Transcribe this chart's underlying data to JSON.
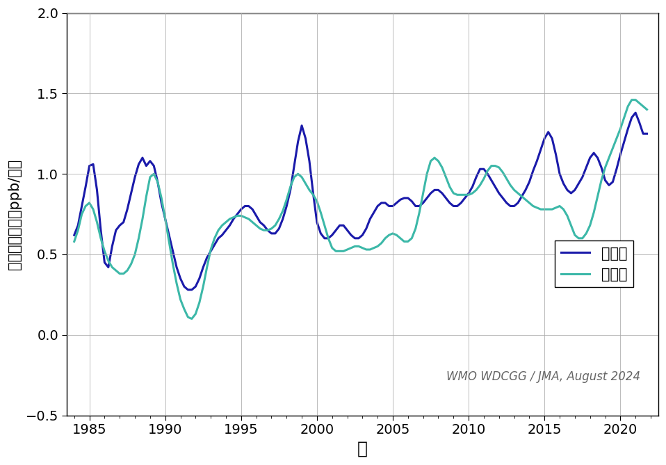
{
  "xlabel": "年",
  "ylabel": "濃度年増加量（ppb/年）",
  "annotation": "WMO WDCGG / JMA, August 2024",
  "legend_north": "北半球",
  "legend_south": "南半球",
  "color_north": "#1a1aaa",
  "color_south": "#3cb8a8",
  "xlim": [
    1983.5,
    2022.5
  ],
  "ylim": [
    -0.5,
    2.0
  ],
  "yticks": [
    -0.5,
    0.0,
    0.5,
    1.0,
    1.5,
    2.0
  ],
  "xticks": [
    1985,
    1990,
    1995,
    2000,
    2005,
    2010,
    2015,
    2020
  ],
  "north_x": [
    1984.0,
    1984.25,
    1984.5,
    1984.75,
    1985.0,
    1985.25,
    1985.5,
    1985.75,
    1986.0,
    1986.25,
    1986.5,
    1986.75,
    1987.0,
    1987.25,
    1987.5,
    1987.75,
    1988.0,
    1988.25,
    1988.5,
    1988.75,
    1989.0,
    1989.25,
    1989.5,
    1989.75,
    1990.0,
    1990.25,
    1990.5,
    1990.75,
    1991.0,
    1991.25,
    1991.5,
    1991.75,
    1992.0,
    1992.25,
    1992.5,
    1992.75,
    1993.0,
    1993.25,
    1993.5,
    1993.75,
    1994.0,
    1994.25,
    1994.5,
    1994.75,
    1995.0,
    1995.25,
    1995.5,
    1995.75,
    1996.0,
    1996.25,
    1996.5,
    1996.75,
    1997.0,
    1997.25,
    1997.5,
    1997.75,
    1998.0,
    1998.25,
    1998.5,
    1998.75,
    1999.0,
    1999.25,
    1999.5,
    1999.75,
    2000.0,
    2000.25,
    2000.5,
    2000.75,
    2001.0,
    2001.25,
    2001.5,
    2001.75,
    2002.0,
    2002.25,
    2002.5,
    2002.75,
    2003.0,
    2003.25,
    2003.5,
    2003.75,
    2004.0,
    2004.25,
    2004.5,
    2004.75,
    2005.0,
    2005.25,
    2005.5,
    2005.75,
    2006.0,
    2006.25,
    2006.5,
    2006.75,
    2007.0,
    2007.25,
    2007.5,
    2007.75,
    2008.0,
    2008.25,
    2008.5,
    2008.75,
    2009.0,
    2009.25,
    2009.5,
    2009.75,
    2010.0,
    2010.25,
    2010.5,
    2010.75,
    2011.0,
    2011.25,
    2011.5,
    2011.75,
    2012.0,
    2012.25,
    2012.5,
    2012.75,
    2013.0,
    2013.25,
    2013.5,
    2013.75,
    2014.0,
    2014.25,
    2014.5,
    2014.75,
    2015.0,
    2015.25,
    2015.5,
    2015.75,
    2016.0,
    2016.25,
    2016.5,
    2016.75,
    2017.0,
    2017.25,
    2017.5,
    2017.75,
    2018.0,
    2018.25,
    2018.5,
    2018.75,
    2019.0,
    2019.25,
    2019.5,
    2019.75,
    2020.0,
    2020.25,
    2020.5,
    2020.75,
    2021.0,
    2021.25,
    2021.5,
    2021.75
  ],
  "north_y": [
    0.62,
    0.68,
    0.8,
    0.92,
    1.05,
    1.06,
    0.9,
    0.65,
    0.45,
    0.42,
    0.55,
    0.65,
    0.68,
    0.7,
    0.78,
    0.88,
    0.98,
    1.06,
    1.1,
    1.05,
    1.08,
    1.05,
    0.95,
    0.82,
    0.72,
    0.62,
    0.52,
    0.42,
    0.35,
    0.3,
    0.28,
    0.28,
    0.3,
    0.35,
    0.42,
    0.48,
    0.52,
    0.56,
    0.6,
    0.62,
    0.65,
    0.68,
    0.72,
    0.75,
    0.78,
    0.8,
    0.8,
    0.78,
    0.74,
    0.7,
    0.68,
    0.65,
    0.63,
    0.63,
    0.66,
    0.72,
    0.8,
    0.9,
    1.05,
    1.2,
    1.3,
    1.22,
    1.08,
    0.88,
    0.7,
    0.63,
    0.6,
    0.6,
    0.62,
    0.65,
    0.68,
    0.68,
    0.65,
    0.62,
    0.6,
    0.6,
    0.62,
    0.66,
    0.72,
    0.76,
    0.8,
    0.82,
    0.82,
    0.8,
    0.8,
    0.82,
    0.84,
    0.85,
    0.85,
    0.83,
    0.8,
    0.8,
    0.82,
    0.85,
    0.88,
    0.9,
    0.9,
    0.88,
    0.85,
    0.82,
    0.8,
    0.8,
    0.82,
    0.85,
    0.88,
    0.92,
    0.98,
    1.03,
    1.03,
    1.0,
    0.96,
    0.92,
    0.88,
    0.85,
    0.82,
    0.8,
    0.8,
    0.82,
    0.86,
    0.9,
    0.95,
    1.02,
    1.08,
    1.15,
    1.22,
    1.26,
    1.22,
    1.12,
    1.0,
    0.94,
    0.9,
    0.88,
    0.9,
    0.94,
    0.98,
    1.04,
    1.1,
    1.13,
    1.1,
    1.04,
    0.96,
    0.93,
    0.95,
    1.03,
    1.12,
    1.2,
    1.28,
    1.35,
    1.38,
    1.32,
    1.25,
    1.25
  ],
  "south_x": [
    1984.0,
    1984.25,
    1984.5,
    1984.75,
    1985.0,
    1985.25,
    1985.5,
    1985.75,
    1986.0,
    1986.25,
    1986.5,
    1986.75,
    1987.0,
    1987.25,
    1987.5,
    1987.75,
    1988.0,
    1988.25,
    1988.5,
    1988.75,
    1989.0,
    1989.25,
    1989.5,
    1989.75,
    1990.0,
    1990.25,
    1990.5,
    1990.75,
    1991.0,
    1991.25,
    1991.5,
    1991.75,
    1992.0,
    1992.25,
    1992.5,
    1992.75,
    1993.0,
    1993.25,
    1993.5,
    1993.75,
    1994.0,
    1994.25,
    1994.5,
    1994.75,
    1995.0,
    1995.25,
    1995.5,
    1995.75,
    1996.0,
    1996.25,
    1996.5,
    1996.75,
    1997.0,
    1997.25,
    1997.5,
    1997.75,
    1998.0,
    1998.25,
    1998.5,
    1998.75,
    1999.0,
    1999.25,
    1999.5,
    1999.75,
    2000.0,
    2000.25,
    2000.5,
    2000.75,
    2001.0,
    2001.25,
    2001.5,
    2001.75,
    2002.0,
    2002.25,
    2002.5,
    2002.75,
    2003.0,
    2003.25,
    2003.5,
    2003.75,
    2004.0,
    2004.25,
    2004.5,
    2004.75,
    2005.0,
    2005.25,
    2005.5,
    2005.75,
    2006.0,
    2006.25,
    2006.5,
    2006.75,
    2007.0,
    2007.25,
    2007.5,
    2007.75,
    2008.0,
    2008.25,
    2008.5,
    2008.75,
    2009.0,
    2009.25,
    2009.5,
    2009.75,
    2010.0,
    2010.25,
    2010.5,
    2010.75,
    2011.0,
    2011.25,
    2011.5,
    2011.75,
    2012.0,
    2012.25,
    2012.5,
    2012.75,
    2013.0,
    2013.25,
    2013.5,
    2013.75,
    2014.0,
    2014.25,
    2014.5,
    2014.75,
    2015.0,
    2015.25,
    2015.5,
    2015.75,
    2016.0,
    2016.25,
    2016.5,
    2016.75,
    2017.0,
    2017.25,
    2017.5,
    2017.75,
    2018.0,
    2018.25,
    2018.5,
    2018.75,
    2019.0,
    2019.25,
    2019.5,
    2019.75,
    2020.0,
    2020.25,
    2020.5,
    2020.75,
    2021.0,
    2021.25,
    2021.5,
    2021.75
  ],
  "south_y": [
    0.58,
    0.65,
    0.75,
    0.8,
    0.82,
    0.78,
    0.7,
    0.6,
    0.52,
    0.46,
    0.42,
    0.4,
    0.38,
    0.38,
    0.4,
    0.44,
    0.5,
    0.6,
    0.72,
    0.86,
    0.98,
    1.0,
    0.95,
    0.85,
    0.72,
    0.58,
    0.44,
    0.32,
    0.22,
    0.16,
    0.11,
    0.1,
    0.13,
    0.2,
    0.3,
    0.42,
    0.53,
    0.6,
    0.65,
    0.68,
    0.7,
    0.72,
    0.73,
    0.74,
    0.74,
    0.73,
    0.72,
    0.7,
    0.68,
    0.66,
    0.65,
    0.65,
    0.66,
    0.68,
    0.72,
    0.77,
    0.84,
    0.92,
    0.98,
    1.0,
    0.98,
    0.94,
    0.9,
    0.87,
    0.83,
    0.76,
    0.68,
    0.6,
    0.54,
    0.52,
    0.52,
    0.52,
    0.53,
    0.54,
    0.55,
    0.55,
    0.54,
    0.53,
    0.53,
    0.54,
    0.55,
    0.57,
    0.6,
    0.62,
    0.63,
    0.62,
    0.6,
    0.58,
    0.58,
    0.6,
    0.66,
    0.76,
    0.88,
    1.0,
    1.08,
    1.1,
    1.08,
    1.04,
    0.98,
    0.92,
    0.88,
    0.87,
    0.87,
    0.87,
    0.87,
    0.88,
    0.9,
    0.93,
    0.97,
    1.02,
    1.05,
    1.05,
    1.04,
    1.01,
    0.97,
    0.93,
    0.9,
    0.88,
    0.86,
    0.84,
    0.82,
    0.8,
    0.79,
    0.78,
    0.78,
    0.78,
    0.78,
    0.79,
    0.8,
    0.78,
    0.74,
    0.68,
    0.62,
    0.6,
    0.6,
    0.63,
    0.68,
    0.76,
    0.86,
    0.96,
    1.04,
    1.1,
    1.16,
    1.22,
    1.28,
    1.35,
    1.42,
    1.46,
    1.46,
    1.44,
    1.42,
    1.4
  ]
}
